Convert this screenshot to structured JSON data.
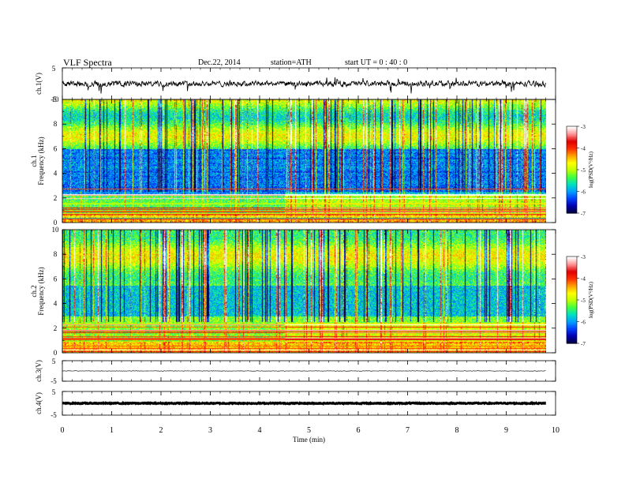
{
  "header": {
    "title": "VLF  Spectra",
    "date": "Dec.22, 2014",
    "station": "station=ATH",
    "start": "start  UT =   0 : 40 : 0"
  },
  "colors": {
    "colormap": [
      "#000040",
      "#0000b0",
      "#0040ff",
      "#00a0ff",
      "#00e0c0",
      "#40ff40",
      "#c0ff00",
      "#ffff00",
      "#ffa000",
      "#ff3000",
      "#e00000",
      "#ff9090",
      "#ffffff"
    ]
  },
  "chart_data": [
    {
      "type": "line",
      "panel": "ch1",
      "ylabel": "ch.1(V)",
      "ylim": [
        -5,
        5
      ],
      "yticks": [
        "5",
        "-5"
      ],
      "xlim": [
        0,
        10
      ],
      "baseline": 0,
      "grid": false
    },
    {
      "type": "heatmap",
      "panel": "spec1",
      "ylabel_top": "ch.1",
      "ylabel": "Frequency  (kHz)",
      "ylim": [
        0,
        10
      ],
      "yticks": [
        "0",
        "2",
        "4",
        "6",
        "8",
        "10"
      ],
      "xlim": [
        0,
        10
      ],
      "data_end_min": 9.8,
      "colorbar": {
        "label": "log(PSD(V²/Hz)",
        "range": [
          -7,
          -3
        ],
        "ticks": [
          "-3",
          "-4",
          "-5",
          "-6",
          "-7"
        ]
      }
    },
    {
      "type": "heatmap",
      "panel": "spec2",
      "ylabel_top": "ch.2",
      "ylabel": "Frequency  (kHz)",
      "ylim": [
        0,
        10
      ],
      "yticks": [
        "0",
        "2",
        "4",
        "6",
        "8",
        "10"
      ],
      "xlim": [
        0,
        10
      ],
      "data_end_min": 9.8,
      "colorbar": {
        "label": "log(PSD(V²/Hz)",
        "range": [
          -7,
          -3
        ],
        "ticks": [
          "-3",
          "-4",
          "-5",
          "-6",
          "-7"
        ]
      }
    },
    {
      "type": "line",
      "panel": "ch3",
      "ylabel": "ch.3(V)",
      "ylim": [
        -5,
        5
      ],
      "yticks": [
        "5",
        "-5"
      ],
      "xlim": [
        0,
        10
      ],
      "baseline": 0,
      "grid": false
    },
    {
      "type": "line",
      "panel": "ch4",
      "ylabel": "ch.4(V)",
      "ylim": [
        -5,
        5
      ],
      "yticks": [
        "5",
        "-5"
      ],
      "xlim": [
        0,
        10
      ],
      "baseline": 0,
      "grid": false
    }
  ],
  "xaxis": {
    "label": "Time  (min)",
    "ticks": [
      "0",
      "1",
      "2",
      "3",
      "4",
      "5",
      "6",
      "7",
      "8",
      "9",
      "10"
    ]
  }
}
